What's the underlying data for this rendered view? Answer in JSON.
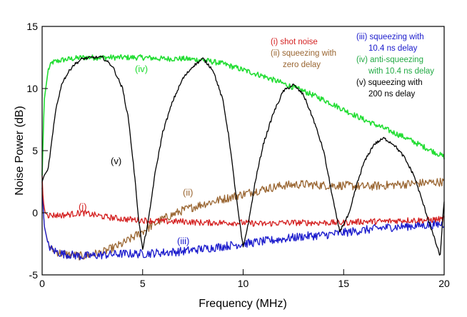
{
  "chart_data": {
    "type": "line",
    "title": "",
    "xlabel": "Frequency (MHz)",
    "ylabel": "Noise Power (dB)",
    "xlim": [
      0,
      20
    ],
    "ylim": [
      -5,
      15
    ],
    "xticks": [
      0,
      5,
      10,
      15,
      20
    ],
    "yticks": [
      -5,
      0,
      5,
      10,
      15
    ],
    "grid": false,
    "series": [
      {
        "name": "(i) shot noise",
        "label": "(i)",
        "color": "#d42020",
        "x": [
          0,
          0.05,
          0.15,
          0.3,
          0.5,
          1,
          2,
          3,
          4,
          5,
          6,
          7,
          8,
          9,
          10,
          11,
          12,
          13,
          14,
          15,
          16,
          17,
          18,
          19,
          20
        ],
        "y": [
          3,
          1,
          0,
          -0.2,
          -0.2,
          -0.2,
          0,
          -0.3,
          -0.5,
          -0.6,
          -0.7,
          -0.7,
          -0.8,
          -0.8,
          -0.8,
          -0.9,
          -0.8,
          -0.8,
          -0.8,
          -0.8,
          -0.7,
          -0.7,
          -0.6,
          -0.6,
          -0.5
        ]
      },
      {
        "name": "(ii) squeezing with zero delay",
        "label": "(ii)",
        "color": "#9a6632",
        "x": [
          0,
          0.1,
          0.3,
          0.5,
          1,
          2,
          3,
          4,
          5,
          6,
          7,
          8,
          9,
          10,
          11,
          12,
          13,
          14,
          15,
          16,
          17,
          18,
          19,
          20
        ],
        "y": [
          2.5,
          -1,
          -2.5,
          -3,
          -3.3,
          -3.5,
          -3.2,
          -2.5,
          -1.5,
          -0.5,
          0.2,
          0.7,
          1.1,
          1.5,
          1.9,
          2.2,
          2.3,
          2.2,
          2.2,
          2.1,
          2.2,
          2.3,
          2.4,
          2.5
        ]
      },
      {
        "name": "(iii) squeezing with 10.4 ns delay",
        "label": "(iii)",
        "color": "#1a1acc",
        "x": [
          0,
          0.1,
          0.3,
          0.5,
          1,
          2,
          3,
          4,
          5,
          6,
          7,
          8,
          9,
          10,
          11,
          12,
          13,
          14,
          15,
          16,
          17,
          18,
          19,
          20
        ],
        "y": [
          2,
          -1,
          -2.6,
          -3,
          -3.3,
          -3.5,
          -3.4,
          -3.3,
          -3.3,
          -3.2,
          -3.1,
          -2.9,
          -2.7,
          -2.5,
          -2.3,
          -2.1,
          -1.9,
          -1.8,
          -1.6,
          -1.4,
          -1.2,
          -1.1,
          -1.0,
          -0.9
        ]
      },
      {
        "name": "(iv) anti-squeezing with 10.4 ns delay",
        "label": "(iv)",
        "color": "#22dd33",
        "x": [
          0,
          0.1,
          0.3,
          0.5,
          1,
          2,
          3,
          4,
          5,
          6,
          7,
          8,
          9,
          10,
          11,
          12,
          13,
          14,
          15,
          16,
          17,
          18,
          19,
          20
        ],
        "y": [
          3,
          9,
          11.5,
          12.1,
          12.3,
          12.5,
          12.5,
          12.5,
          12.5,
          12.4,
          12.4,
          12.3,
          12.0,
          11.5,
          11.0,
          10.4,
          9.8,
          9.1,
          8.3,
          7.5,
          6.8,
          6.1,
          5.3,
          4.5
        ]
      },
      {
        "name": "(v) squeezing with 200 ns delay",
        "label": "(v)",
        "color": "#000000",
        "x": [
          0,
          0.1,
          0.3,
          0.5,
          0.7,
          1,
          1.5,
          2,
          2.5,
          3,
          3.5,
          4,
          4.3,
          4.6,
          4.8,
          5,
          5.3,
          5.6,
          6,
          6.5,
          7,
          7.5,
          8,
          8.5,
          9,
          9.3,
          9.6,
          9.8,
          10,
          10.3,
          10.6,
          11,
          11.5,
          12,
          12.5,
          13,
          13.5,
          14,
          14.3,
          14.6,
          14.8,
          15,
          15.3,
          15.6,
          16,
          16.5,
          17,
          17.5,
          18,
          18.5,
          18.8,
          19.2,
          19.5,
          19.8,
          20
        ],
        "y": [
          2.5,
          3.0,
          3.5,
          6,
          8.5,
          10.5,
          11.8,
          12.4,
          12.5,
          12.5,
          11.8,
          10,
          7.5,
          3,
          -0.5,
          -3,
          -0.5,
          3,
          6.5,
          9,
          10.8,
          11.8,
          12.4,
          11.5,
          9,
          6,
          2,
          -0.5,
          -2.8,
          -0.5,
          2.5,
          5.5,
          8,
          9.8,
          10.3,
          9.5,
          7.5,
          5,
          2.5,
          0,
          -1.5,
          -0.9,
          0,
          2,
          4,
          5.5,
          6.0,
          5.5,
          4.5,
          3.0,
          1.5,
          -0.5,
          -2,
          -3.5,
          1
        ]
      }
    ],
    "legend_entries": [
      {
        "text": "(i) shot noise",
        "color": "#d42020"
      },
      {
        "text": "(ii) squeezing with",
        "color": "#9a6632"
      },
      {
        "text": "zero delay",
        "color": "#9a6632"
      },
      {
        "text": "(iii) squeezing with",
        "color": "#1a1acc"
      },
      {
        "text": "10.4 ns delay",
        "color": "#1a1acc"
      },
      {
        "text": "(iv) anti-squeezing",
        "color": "#22aa44"
      },
      {
        "text": "with 10.4 ns delay",
        "color": "#22aa44"
      },
      {
        "text": "(v) squeezing with",
        "color": "#000000"
      },
      {
        "text": "200 ns delay",
        "color": "#000000"
      }
    ],
    "curve_labels": [
      {
        "text": "(i)",
        "color": "#d42020"
      },
      {
        "text": "(ii)",
        "color": "#9a6632"
      },
      {
        "text": "(iii)",
        "color": "#1a1acc"
      },
      {
        "text": "(iv)",
        "color": "#22dd33"
      },
      {
        "text": "(v)",
        "color": "#000000"
      }
    ]
  }
}
